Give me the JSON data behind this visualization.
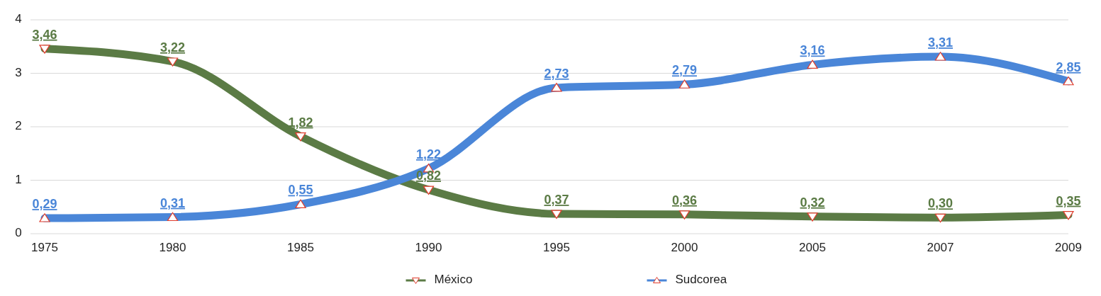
{
  "chart_data": {
    "type": "line",
    "categories": [
      "1975",
      "1980",
      "1985",
      "1990",
      "1995",
      "2000",
      "2005",
      "2007",
      "2009"
    ],
    "series": [
      {
        "name": "México",
        "color": "#5b7b45",
        "values": [
          3.46,
          3.22,
          1.82,
          0.82,
          0.37,
          0.36,
          0.32,
          0.3,
          0.35
        ],
        "value_labels": [
          "3,46",
          "3,22",
          "1,82",
          "0,82",
          "0,37",
          "0,36",
          "0,32",
          "0,30",
          "0,35"
        ]
      },
      {
        "name": "Sudcorea",
        "color": "#4a86d8",
        "values": [
          0.29,
          0.31,
          0.55,
          1.22,
          2.73,
          2.79,
          3.16,
          3.31,
          2.85
        ],
        "value_labels": [
          "0,29",
          "0,31",
          "0,55",
          "1,22",
          "2,73",
          "2,79",
          "3,16",
          "3,31",
          "2,85"
        ]
      }
    ],
    "ylim": [
      0,
      4
    ],
    "yticks": [
      0,
      1,
      2,
      3,
      4
    ],
    "grid": "y",
    "legend": "bottom",
    "marker": "triangle"
  }
}
